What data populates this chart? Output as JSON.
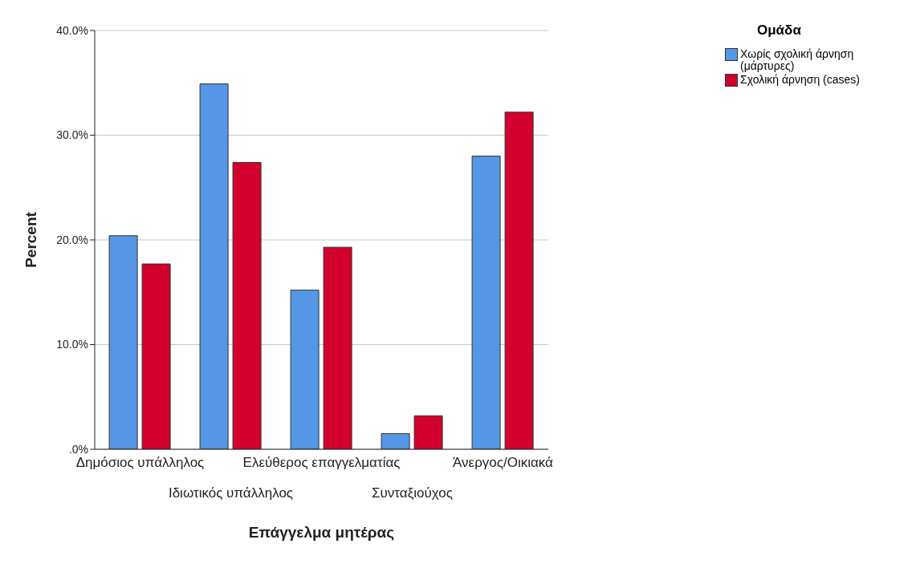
{
  "chart_data": {
    "type": "bar",
    "xlabel": "Επάγγελμα μητέρας",
    "ylabel": "Percent",
    "legend_title": "Ομάδα",
    "categories": [
      "Δημόσιος υπάλληλος",
      "Ιδιωτικός υπάλληλος",
      "Ελεύθερος επαγγελματίας",
      "Συνταξιούχος",
      "Άνεργος/Οικιακά"
    ],
    "series": [
      {
        "name": "Χωρίς σχολική άρνηση (μάρτυρες)",
        "color": "#5596e6",
        "values": [
          20.4,
          34.9,
          15.2,
          1.5,
          28.0
        ]
      },
      {
        "name": "Σχολική άρνηση (cases)",
        "color": "#d1002c",
        "values": [
          17.7,
          27.4,
          19.3,
          3.2,
          32.2
        ]
      }
    ],
    "ylim": [
      0,
      40
    ],
    "yticks": [
      {
        "value": 0,
        "label": ".0%"
      },
      {
        "value": 10,
        "label": "10.0%"
      },
      {
        "value": 20,
        "label": "20.0%"
      },
      {
        "value": 30,
        "label": "30.0%"
      },
      {
        "value": 40,
        "label": "40.0%"
      }
    ],
    "grid": "y",
    "legend": "top right"
  }
}
